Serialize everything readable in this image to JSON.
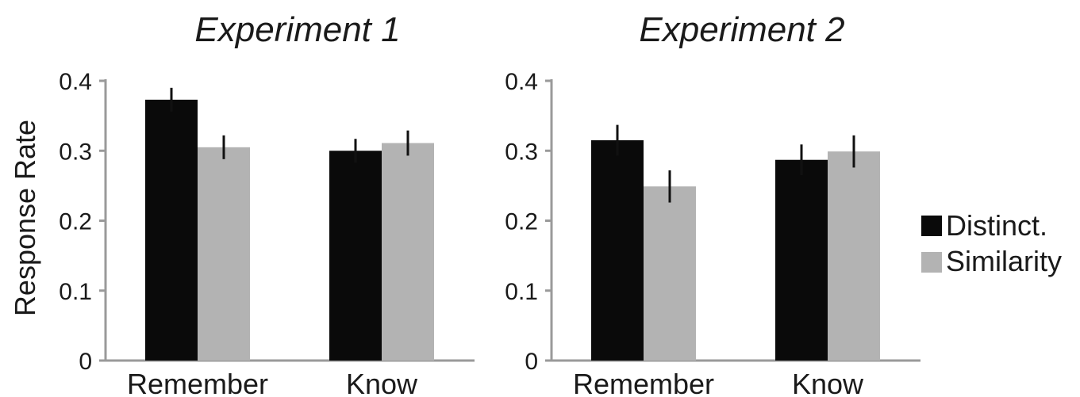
{
  "chart_data": [
    {
      "type": "bar",
      "title": "Experiment 1",
      "ylabel": "Response Rate",
      "xlabel": "",
      "categories": [
        "Remember",
        "Know"
      ],
      "ylim": [
        0,
        0.4
      ],
      "yticks": [
        "0",
        "0.1",
        "0.2",
        "0.3",
        "0.4"
      ],
      "grid": false,
      "series": [
        {
          "name": "Distinct.",
          "color": "#0a0a0a",
          "values": [
            0.373,
            0.3
          ],
          "errors": [
            0.017,
            0.017
          ]
        },
        {
          "name": "Similarity",
          "color": "#b3b3b3",
          "values": [
            0.305,
            0.311
          ],
          "errors": [
            0.017,
            0.018
          ]
        }
      ]
    },
    {
      "type": "bar",
      "title": "Experiment 2",
      "ylabel": "",
      "xlabel": "",
      "categories": [
        "Remember",
        "Know"
      ],
      "ylim": [
        0,
        0.4
      ],
      "yticks": [
        "0",
        "0.1",
        "0.2",
        "0.3",
        "0.4"
      ],
      "grid": false,
      "series": [
        {
          "name": "Distinct.",
          "color": "#0a0a0a",
          "values": [
            0.315,
            0.287
          ],
          "errors": [
            0.022,
            0.022
          ]
        },
        {
          "name": "Similarity",
          "color": "#b3b3b3",
          "values": [
            0.249,
            0.299
          ],
          "errors": [
            0.023,
            0.023
          ]
        }
      ]
    }
  ],
  "legend": {
    "placement": "right",
    "items": [
      {
        "label": "Distinct.",
        "color": "#0a0a0a"
      },
      {
        "label": "Similarity",
        "color": "#b3b3b3"
      }
    ]
  },
  "colors": {
    "axis": "#9a9a9a",
    "text": "#1a1a1a",
    "errorbar": "#111111"
  }
}
